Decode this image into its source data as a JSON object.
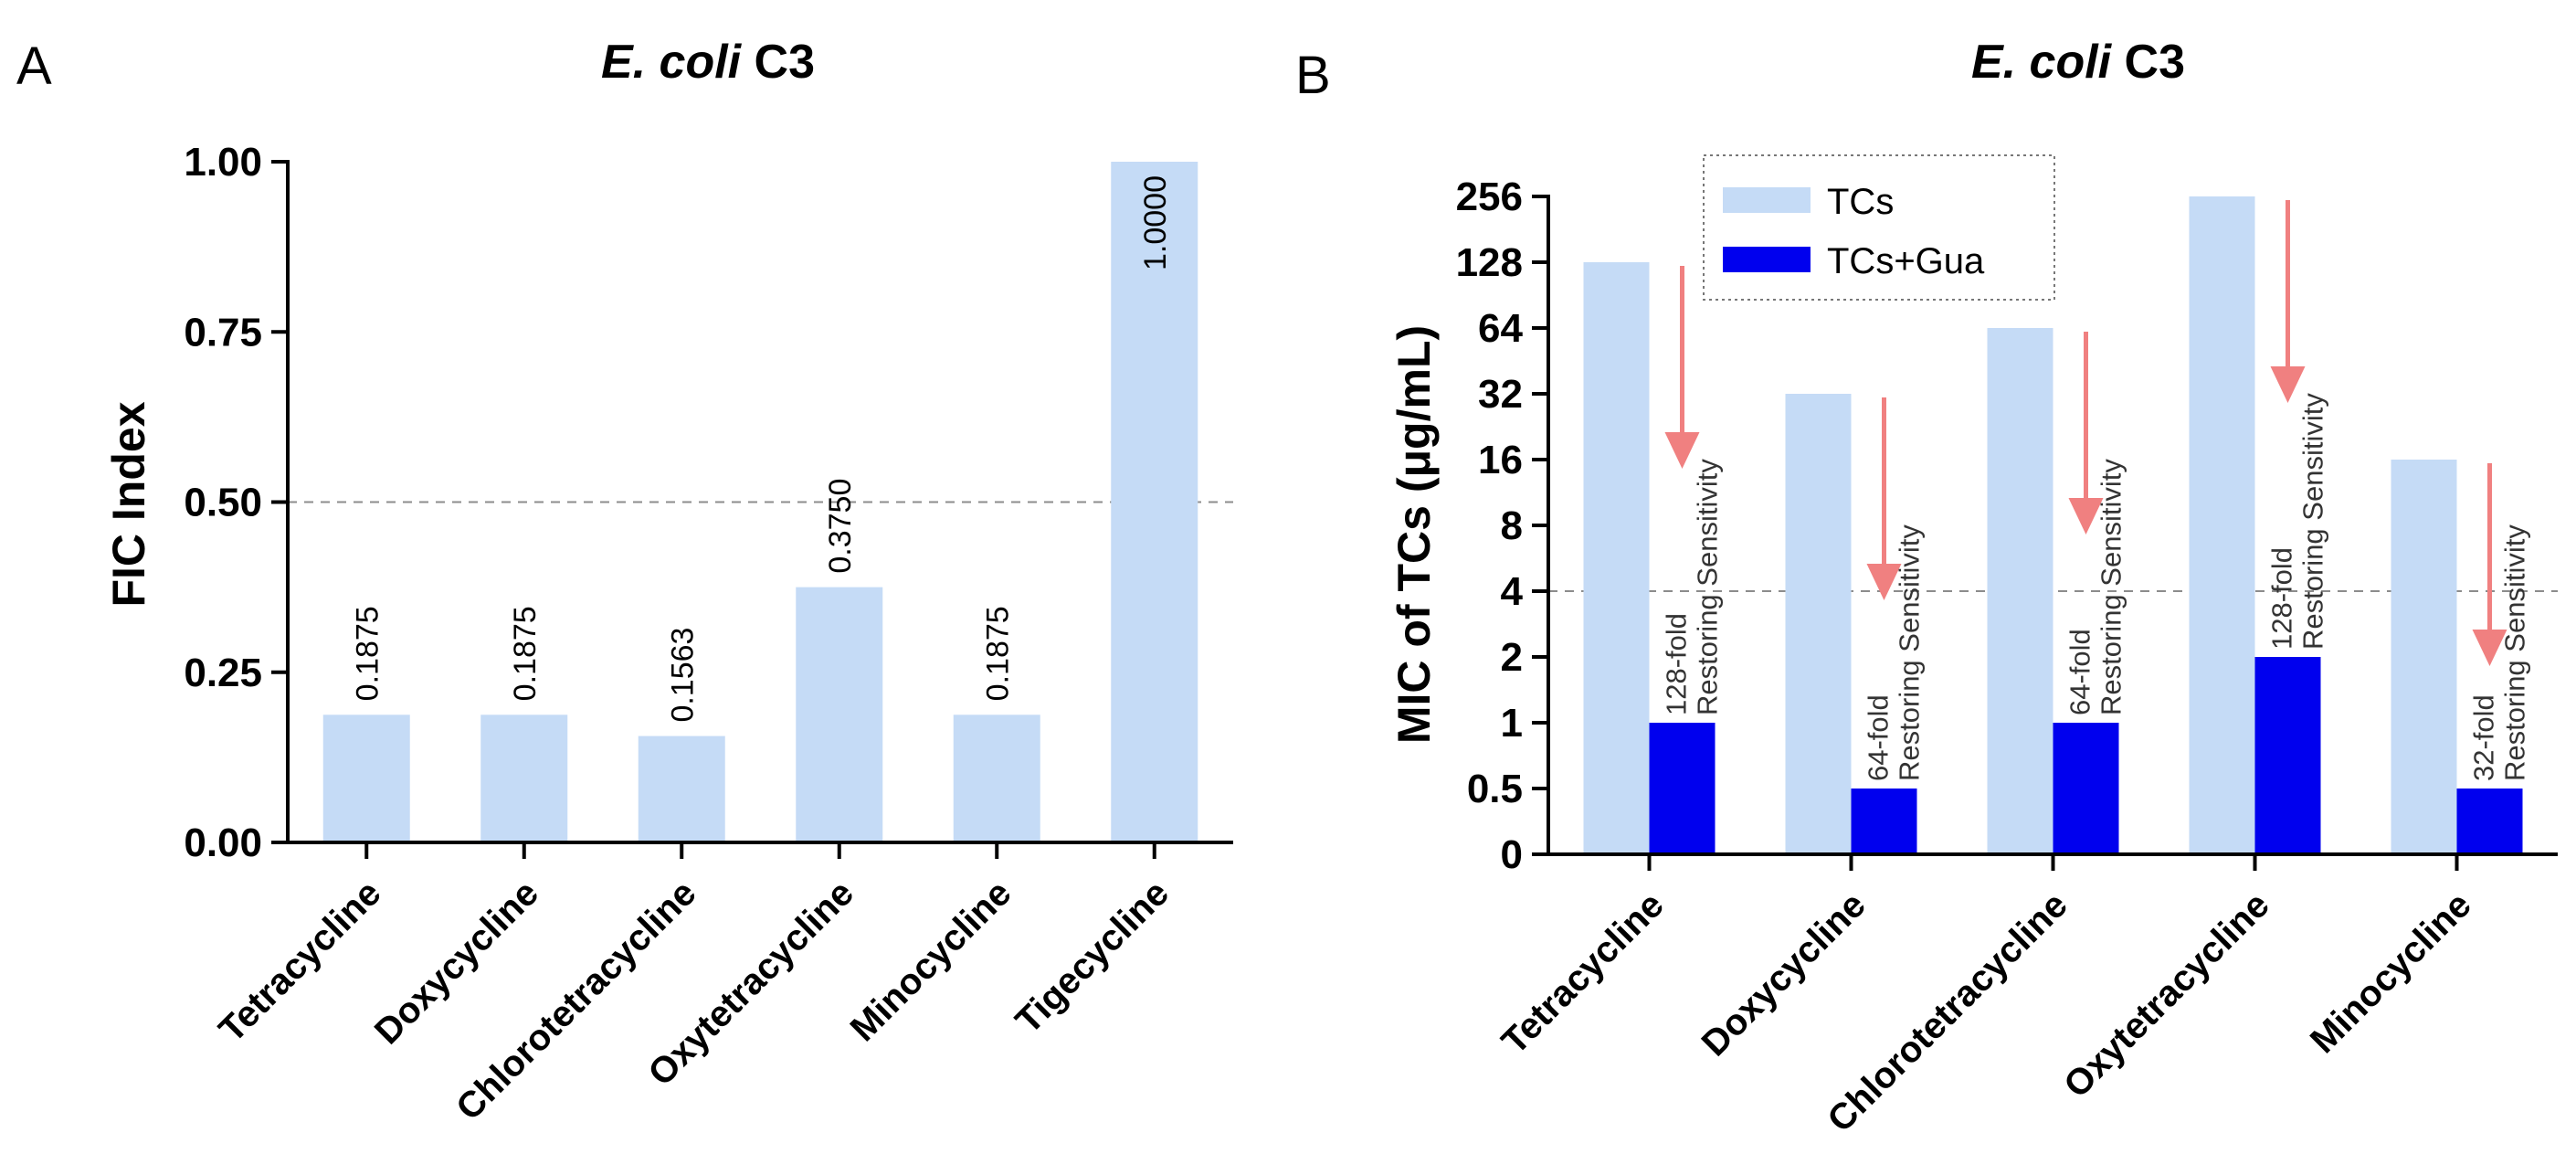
{
  "figure": {
    "colors": {
      "light_bar": "#c5dbf6",
      "dark_bar": "#0000ee",
      "arrow": "#f08080",
      "axis": "#000000",
      "ref_line": "#8c8c8c",
      "annotation_text": "#333333"
    }
  },
  "chart_data": [
    {
      "panel": "A",
      "type": "bar",
      "title_italic": "E. coli",
      "title_rest": " C3",
      "xlabel": "",
      "ylabel": "FIC Index",
      "categories": [
        "Tetracycline",
        "Doxycycline",
        "Chlorotetracycline",
        "Oxytetracycline",
        "Minocycline",
        "Tigecycline"
      ],
      "values": [
        0.1875,
        0.1875,
        0.1563,
        0.375,
        0.1875,
        1.0
      ],
      "value_labels": [
        "0.1875",
        "0.1875",
        "0.1563",
        "0.3750",
        "0.1875",
        "1.0000"
      ],
      "ylim": [
        0,
        1
      ],
      "yticks": [
        0,
        0.25,
        0.5,
        0.75,
        1.0
      ],
      "ytick_labels": [
        "0.00",
        "0.25",
        "0.50",
        "0.75",
        "1.00"
      ],
      "reference_line": 0.5,
      "grid": false
    },
    {
      "panel": "B",
      "type": "bar",
      "title_italic": "E. coli",
      "title_rest": " C3",
      "xlabel": "",
      "ylabel": "MIC of TCs (μg/mL)",
      "y_scale": "log2",
      "categories": [
        "Tetracycline",
        "Doxycycline",
        "Chlorotetracycline",
        "Oxytetracycline",
        "Minocycline"
      ],
      "series": [
        {
          "name": "TCs",
          "values": [
            128,
            32,
            64,
            256,
            16
          ]
        },
        {
          "name": "TCs+Gua",
          "values": [
            1,
            0.5,
            1,
            2,
            0.5
          ]
        }
      ],
      "ytick_values": [
        0.25,
        0.5,
        1,
        2,
        4,
        8,
        16,
        32,
        64,
        128,
        256
      ],
      "ytick_labels": [
        "0",
        "0.5",
        "1",
        "2",
        "4",
        "8",
        "16",
        "32",
        "64",
        "128",
        "256"
      ],
      "ylim": [
        0.25,
        256
      ],
      "reference_line": 4,
      "legend_position": "top-center",
      "annotations": [
        {
          "fold": "128-fold",
          "text": "Restoring Sensitivity"
        },
        {
          "fold": "64-fold",
          "text": "Restoring Sensitivity"
        },
        {
          "fold": "64-fold",
          "text": "Restoring Sensitivity"
        },
        {
          "fold": "128-fold",
          "text": "Restoring Sensitivity"
        },
        {
          "fold": "32-fold",
          "text": "Restoring Sensitivity"
        }
      ],
      "grid": false
    }
  ]
}
